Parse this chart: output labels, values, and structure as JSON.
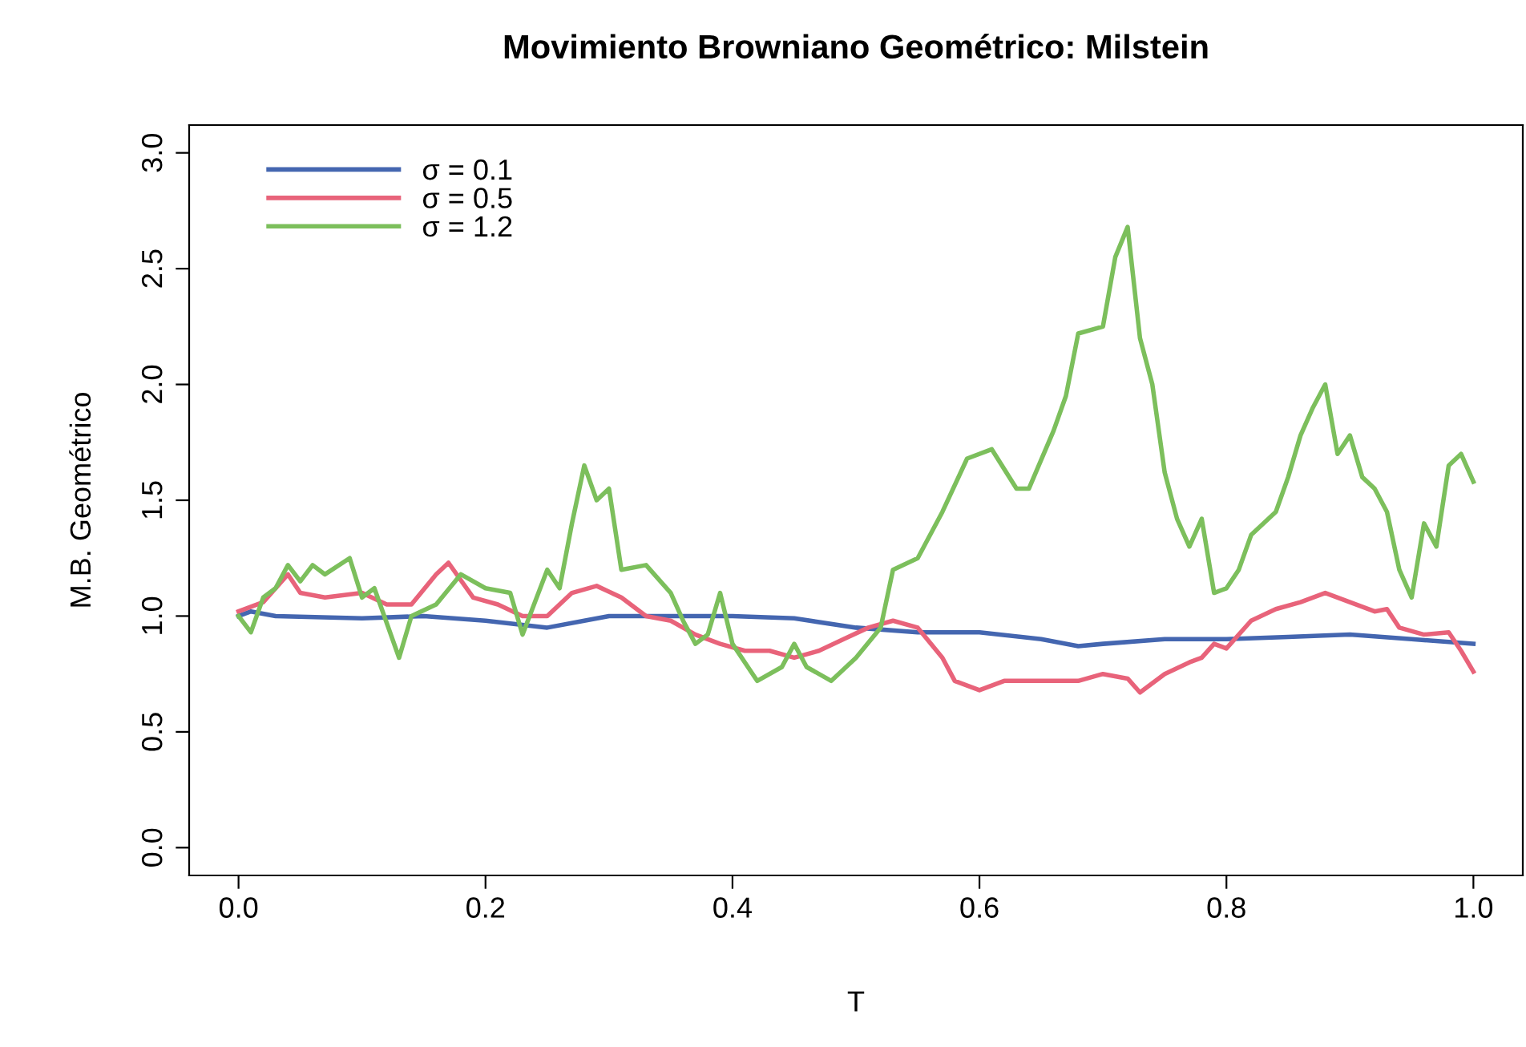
{
  "chart_data": {
    "type": "line",
    "title": "Movimiento Browniano Geométrico: Milstein",
    "xlabel": "T",
    "ylabel": "M.B. Geométrico",
    "xlim": [
      -0.04,
      1.04
    ],
    "ylim": [
      -0.12,
      3.12
    ],
    "xticks": [
      {
        "value": 0,
        "label": "0.0"
      },
      0.2,
      0.4,
      0.6,
      0.8,
      {
        "value": 1,
        "label": "1.0"
      }
    ],
    "yticks": [
      {
        "value": 0,
        "label": "0.0"
      },
      0.5,
      {
        "value": 1,
        "label": "1.0"
      },
      1.5,
      {
        "value": 2,
        "label": "2.0"
      },
      2.5,
      {
        "value": 3,
        "label": "3.0"
      }
    ],
    "grid": false,
    "legend": "top left",
    "line_style": "solid",
    "marker": "none",
    "series": [
      {
        "name": "σ = 0.1",
        "color": "#4466b0",
        "x": [
          0,
          0.01,
          0.03,
          0.1,
          0.15,
          0.2,
          0.25,
          0.28,
          0.3,
          0.4,
          0.45,
          0.5,
          0.55,
          0.6,
          0.65,
          0.68,
          0.7,
          0.75,
          0.8,
          0.85,
          0.9,
          0.95,
          1.0
        ],
        "values": [
          1.0,
          1.02,
          1.0,
          0.99,
          1.0,
          0.98,
          0.95,
          0.98,
          1.0,
          1.0,
          0.99,
          0.95,
          0.93,
          0.93,
          0.9,
          0.87,
          0.88,
          0.9,
          0.9,
          0.91,
          0.92,
          0.9,
          0.88
        ]
      },
      {
        "name": "σ = 0.5",
        "color": "#e8637a",
        "x": [
          0,
          0.02,
          0.04,
          0.05,
          0.07,
          0.1,
          0.12,
          0.14,
          0.16,
          0.17,
          0.19,
          0.21,
          0.23,
          0.25,
          0.27,
          0.29,
          0.31,
          0.33,
          0.35,
          0.37,
          0.39,
          0.41,
          0.43,
          0.45,
          0.47,
          0.49,
          0.51,
          0.53,
          0.55,
          0.57,
          0.58,
          0.6,
          0.62,
          0.65,
          0.68,
          0.7,
          0.72,
          0.73,
          0.75,
          0.77,
          0.78,
          0.79,
          0.8,
          0.82,
          0.84,
          0.86,
          0.88,
          0.9,
          0.92,
          0.93,
          0.94,
          0.96,
          0.98,
          0.99,
          1.0
        ],
        "values": [
          1.02,
          1.06,
          1.18,
          1.1,
          1.08,
          1.1,
          1.05,
          1.05,
          1.18,
          1.23,
          1.08,
          1.05,
          1.0,
          1.0,
          1.1,
          1.13,
          1.08,
          1.0,
          0.98,
          0.92,
          0.88,
          0.85,
          0.85,
          0.82,
          0.85,
          0.9,
          0.95,
          0.98,
          0.95,
          0.82,
          0.72,
          0.68,
          0.72,
          0.72,
          0.72,
          0.75,
          0.73,
          0.67,
          0.75,
          0.8,
          0.82,
          0.88,
          0.86,
          0.98,
          1.03,
          1.06,
          1.1,
          1.06,
          1.02,
          1.03,
          0.95,
          0.92,
          0.93,
          0.85,
          0.76
        ]
      },
      {
        "name": "σ = 1.2",
        "color": "#7cbf5c",
        "x": [
          0,
          0.01,
          0.02,
          0.03,
          0.04,
          0.05,
          0.06,
          0.07,
          0.09,
          0.1,
          0.11,
          0.13,
          0.14,
          0.16,
          0.18,
          0.2,
          0.22,
          0.23,
          0.25,
          0.26,
          0.27,
          0.28,
          0.29,
          0.3,
          0.31,
          0.33,
          0.35,
          0.36,
          0.37,
          0.38,
          0.39,
          0.4,
          0.41,
          0.42,
          0.44,
          0.45,
          0.46,
          0.48,
          0.5,
          0.52,
          0.53,
          0.55,
          0.57,
          0.59,
          0.61,
          0.63,
          0.64,
          0.66,
          0.67,
          0.68,
          0.7,
          0.71,
          0.72,
          0.73,
          0.74,
          0.75,
          0.76,
          0.77,
          0.78,
          0.79,
          0.8,
          0.81,
          0.82,
          0.84,
          0.85,
          0.86,
          0.87,
          0.88,
          0.89,
          0.9,
          0.91,
          0.92,
          0.93,
          0.94,
          0.95,
          0.96,
          0.97,
          0.98,
          0.99,
          1.0
        ],
        "values": [
          1.0,
          0.93,
          1.08,
          1.12,
          1.22,
          1.15,
          1.22,
          1.18,
          1.25,
          1.08,
          1.12,
          0.82,
          1.0,
          1.05,
          1.18,
          1.12,
          1.1,
          0.92,
          1.2,
          1.12,
          1.4,
          1.65,
          1.5,
          1.55,
          1.2,
          1.22,
          1.1,
          0.98,
          0.88,
          0.92,
          1.1,
          0.88,
          0.8,
          0.72,
          0.78,
          0.88,
          0.78,
          0.72,
          0.82,
          0.95,
          1.2,
          1.25,
          1.45,
          1.68,
          1.72,
          1.55,
          1.55,
          1.8,
          1.95,
          2.22,
          2.25,
          2.55,
          2.68,
          2.2,
          2.0,
          1.62,
          1.42,
          1.3,
          1.42,
          1.1,
          1.12,
          1.2,
          1.35,
          1.45,
          1.6,
          1.78,
          1.9,
          2.0,
          1.7,
          1.78,
          1.6,
          1.55,
          1.45,
          1.2,
          1.08,
          1.4,
          1.3,
          1.65,
          1.7,
          1.58
        ]
      }
    ]
  }
}
